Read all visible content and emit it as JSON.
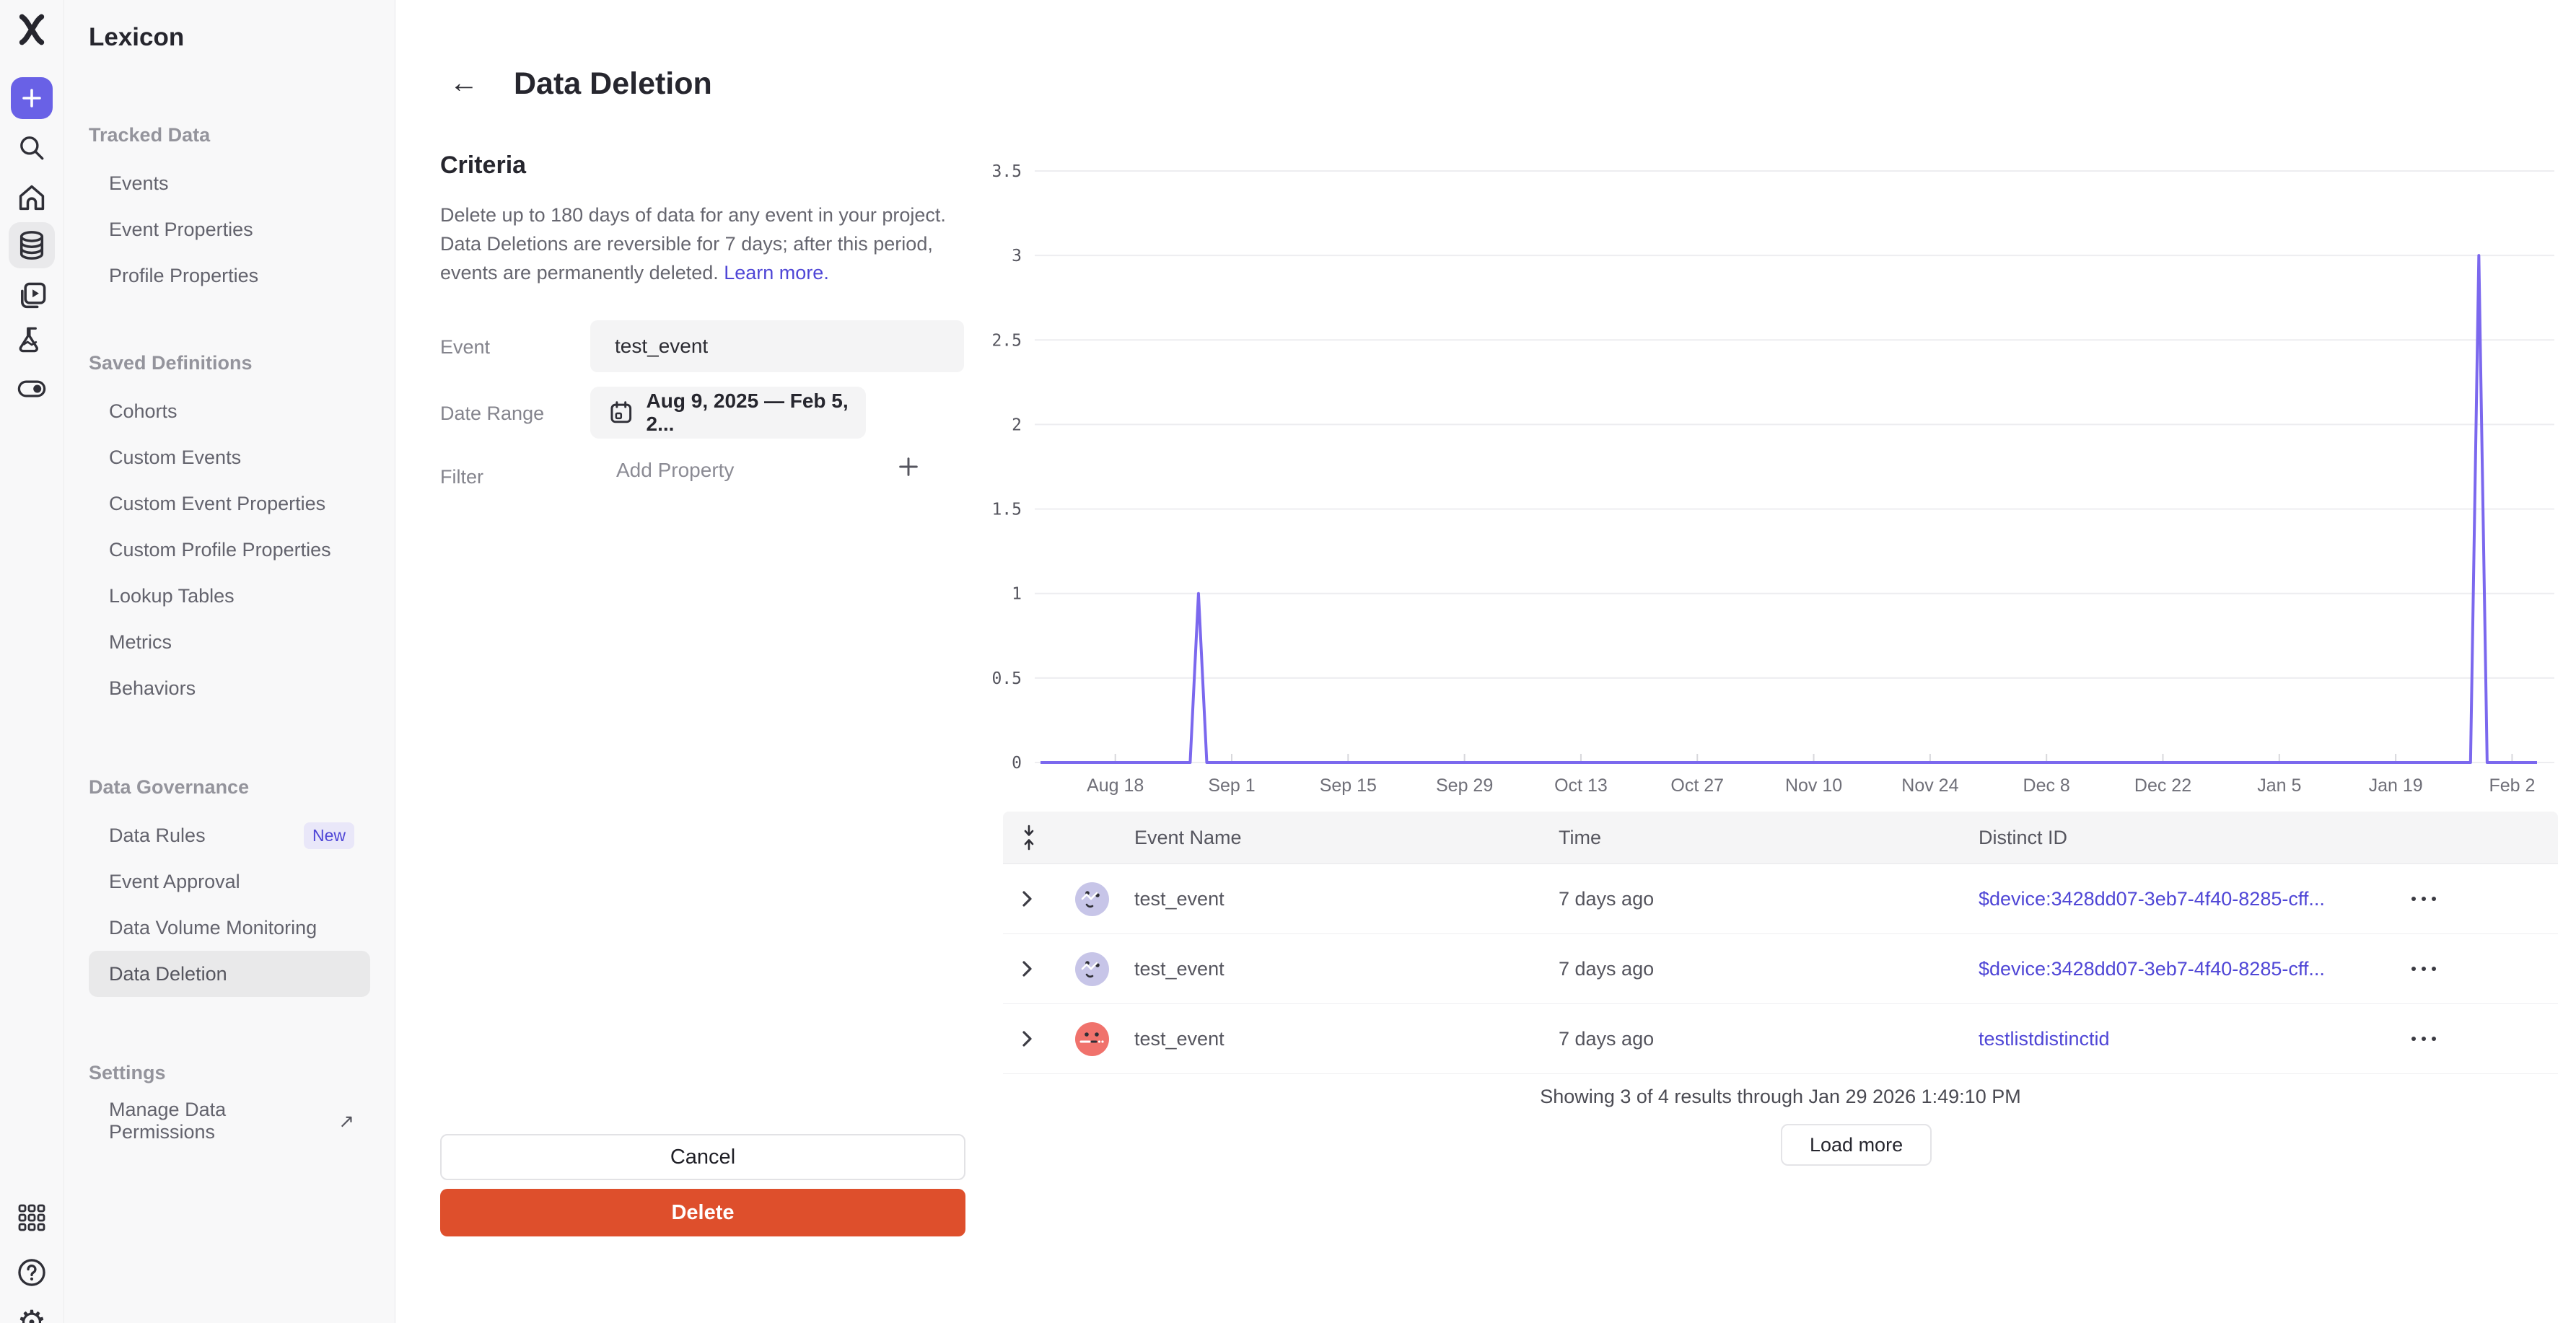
{
  "colors": {
    "accent_purple": "#6961e6",
    "link_purple": "#4f46d6",
    "delete_red": "#de4f2c",
    "chart_line": "#7b68ee",
    "sidebar_bg": "#f8f8f9",
    "selected_bg": "#e9e9ea"
  },
  "rail": {
    "icons": [
      "mixpanel-logo",
      "plus",
      "search",
      "home",
      "database",
      "boards",
      "flask",
      "toggle",
      "apps-grid",
      "help",
      "gear"
    ]
  },
  "sidebar": {
    "title": "Lexicon",
    "sections": [
      {
        "label": "Tracked Data",
        "items": [
          {
            "label": "Events"
          },
          {
            "label": "Event Properties"
          },
          {
            "label": "Profile Properties"
          }
        ]
      },
      {
        "label": "Saved Definitions",
        "items": [
          {
            "label": "Cohorts"
          },
          {
            "label": "Custom Events"
          },
          {
            "label": "Custom Event Properties"
          },
          {
            "label": "Custom Profile Properties"
          },
          {
            "label": "Lookup Tables"
          },
          {
            "label": "Metrics"
          },
          {
            "label": "Behaviors"
          }
        ]
      },
      {
        "label": "Data Governance",
        "items": [
          {
            "label": "Data Rules",
            "badge": "New"
          },
          {
            "label": "Event Approval"
          },
          {
            "label": "Data Volume Monitoring"
          },
          {
            "label": "Data Deletion",
            "selected": true
          }
        ]
      },
      {
        "label": "Settings",
        "items": [
          {
            "label": "Manage Data Permissions",
            "external": true
          }
        ]
      }
    ]
  },
  "header": {
    "title": "Data Deletion",
    "back_icon": "arrow-left"
  },
  "criteria": {
    "heading": "Criteria",
    "description": "Delete up to 180 days of data for any event in your project. Data Deletions are reversible for 7 days; after this period, events are permanently deleted. ",
    "learn_more": "Learn more."
  },
  "form": {
    "event_label": "Event",
    "event_value": "test_event",
    "date_range_label": "Date Range",
    "date_range_value": "Aug 9, 2025 — Feb 5, 2...",
    "filter_label": "Filter",
    "filter_placeholder": "Add Property"
  },
  "chart_data": {
    "type": "line",
    "title": "",
    "xlabel": "",
    "ylabel": "",
    "x_domain": [
      "Aug 9, 2025",
      "Feb 5, 2026"
    ],
    "x_domain_days": 180,
    "ylim": [
      0,
      3.5
    ],
    "y_ticks": [
      0,
      0.5,
      1,
      1.5,
      2,
      2.5,
      3,
      3.5
    ],
    "grid": true,
    "legend": "none",
    "line_color": "#7b68ee",
    "x_ticks": [
      {
        "label": "Aug 18",
        "day": 9
      },
      {
        "label": "Sep 1",
        "day": 23
      },
      {
        "label": "Sep 15",
        "day": 37
      },
      {
        "label": "Sep 29",
        "day": 51
      },
      {
        "label": "Oct 13",
        "day": 65
      },
      {
        "label": "Oct 27",
        "day": 79
      },
      {
        "label": "Nov 10",
        "day": 93
      },
      {
        "label": "Nov 24",
        "day": 107
      },
      {
        "label": "Dec 8",
        "day": 121
      },
      {
        "label": "Dec 22",
        "day": 135
      },
      {
        "label": "Jan 5",
        "day": 149
      },
      {
        "label": "Jan 19",
        "day": 163
      },
      {
        "label": "Feb 2",
        "day": 177
      }
    ],
    "series": [
      {
        "name": "test_event",
        "points": [
          {
            "date": "Aug 9",
            "day": 0,
            "value": 0
          },
          {
            "date": "Aug 27",
            "day": 18,
            "value": 0
          },
          {
            "date": "Aug 28",
            "day": 19,
            "value": 1
          },
          {
            "date": "Aug 29",
            "day": 20,
            "value": 0
          },
          {
            "date": "Jan 28",
            "day": 172,
            "value": 0
          },
          {
            "date": "Jan 29",
            "day": 173,
            "value": 3
          },
          {
            "date": "Jan 30",
            "day": 174,
            "value": 0
          },
          {
            "date": "Feb 5",
            "day": 180,
            "value": 0
          }
        ]
      }
    ]
  },
  "table": {
    "expand_all_icon": "expand-rows",
    "columns": [
      "Event Name",
      "Time",
      "Distinct ID"
    ],
    "rows": [
      {
        "event_name": "test_event",
        "time": "7 days ago",
        "distinct_id": "$device:3428dd07-3eb7-4f40-8285-cff...",
        "avatar_color": "#c7c5e8"
      },
      {
        "event_name": "test_event",
        "time": "7 days ago",
        "distinct_id": "$device:3428dd07-3eb7-4f40-8285-cff...",
        "avatar_color": "#c7c5e8"
      },
      {
        "event_name": "test_event",
        "time": "7 days ago",
        "distinct_id": "testlistdistinctid",
        "avatar_color": "#f0726c"
      }
    ],
    "summary": "Showing 3 of 4 results through Jan 29 2026 1:49:10 PM",
    "load_more_label": "Load more"
  },
  "actions": {
    "cancel_label": "Cancel",
    "delete_label": "Delete"
  }
}
